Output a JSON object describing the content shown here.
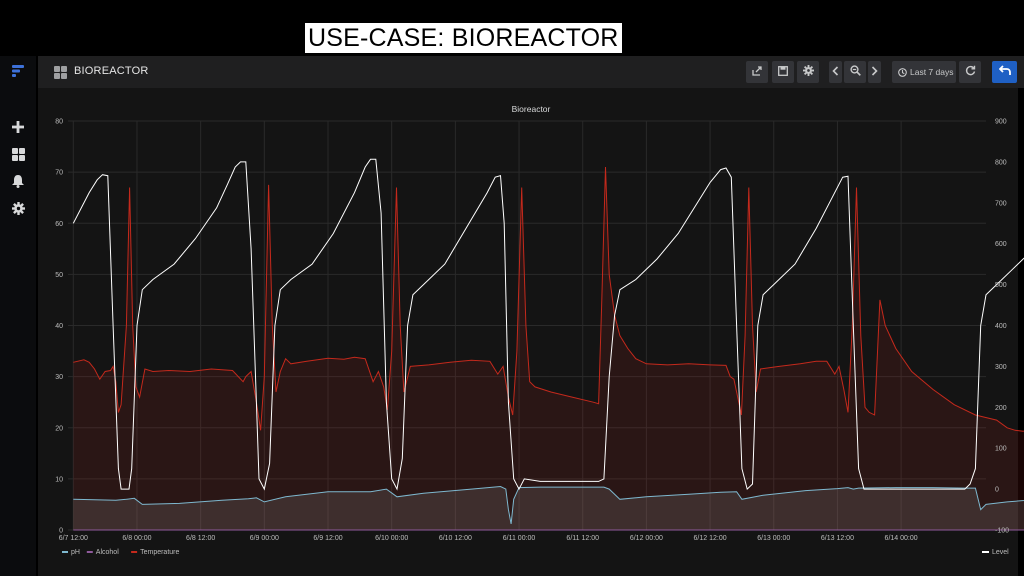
{
  "slide_title": "USE-CASE: BIOREACTOR",
  "dashboard": {
    "title": "BIOREACTOR",
    "time_range_label": "Last 7 days"
  },
  "icons": {
    "logo": "grafana-logo-icon",
    "sidebar": [
      "plus-icon",
      "dashboards-icon",
      "bell-icon",
      "gear-icon"
    ],
    "toolbar": [
      "share-icon",
      "save-icon",
      "settings-icon",
      "chevron-left-icon",
      "zoom-out-icon",
      "chevron-right-icon",
      "clock-icon",
      "refresh-icon",
      "back-icon"
    ]
  },
  "colors": {
    "temperature": "#c4291c",
    "ph": "#7eb8cf",
    "alcohol": "#8f5a9c",
    "level": "#ffffff",
    "accent_button": "#1f60c4"
  },
  "chart_data": {
    "type": "line",
    "title": "Bioreactor",
    "x_tick_labels": [
      "6/7 12:00",
      "6/8 00:00",
      "6/8 12:00",
      "6/9 00:00",
      "6/9 12:00",
      "6/10 00:00",
      "6/10 12:00",
      "6/11 00:00",
      "6/11 12:00",
      "6/12 00:00",
      "6/12 12:00",
      "6/13 00:00",
      "6/13 12:00",
      "6/14 00:00"
    ],
    "x_range_hours": [
      -1,
      172
    ],
    "y_left": {
      "ticks": [
        0,
        10,
        20,
        30,
        40,
        50,
        60,
        70,
        80
      ],
      "range": [
        0,
        80
      ]
    },
    "y_right": {
      "ticks": [
        -100,
        0,
        100,
        200,
        300,
        400,
        500,
        600,
        700,
        800,
        900
      ],
      "range": [
        -100,
        900
      ]
    },
    "grid": true,
    "legend_left": [
      "pH",
      "Alcohol",
      "Temperature"
    ],
    "legend_right": [
      "Level"
    ],
    "legend_placement": "bottom",
    "series": [
      {
        "name": "Level",
        "axis": "left",
        "points": [
          [
            0,
            60
          ],
          [
            1.5,
            63
          ],
          [
            3,
            66
          ],
          [
            4.5,
            68.5
          ],
          [
            5.5,
            69.5
          ],
          [
            6.5,
            69.3
          ],
          [
            7.5,
            40
          ],
          [
            8.5,
            12
          ],
          [
            9,
            8
          ],
          [
            10.5,
            8
          ],
          [
            11,
            12
          ],
          [
            12,
            40
          ],
          [
            13,
            47
          ],
          [
            15,
            49
          ],
          [
            19,
            52
          ],
          [
            23,
            57
          ],
          [
            27,
            63
          ],
          [
            29,
            67.5
          ],
          [
            30.5,
            71
          ],
          [
            31.5,
            72
          ],
          [
            32.5,
            72
          ],
          [
            33.5,
            55
          ],
          [
            34.5,
            25
          ],
          [
            35,
            10
          ],
          [
            36,
            8
          ],
          [
            37,
            13
          ],
          [
            38,
            40
          ],
          [
            39,
            47
          ],
          [
            41,
            49
          ],
          [
            45,
            52
          ],
          [
            49,
            58
          ],
          [
            53,
            66
          ],
          [
            55,
            71
          ],
          [
            56,
            72.5
          ],
          [
            57,
            72.5
          ],
          [
            58,
            62
          ],
          [
            59,
            25
          ],
          [
            60,
            10
          ],
          [
            61,
            8
          ],
          [
            62,
            14
          ],
          [
            63,
            40
          ],
          [
            64,
            46
          ],
          [
            66,
            48
          ],
          [
            70,
            52
          ],
          [
            74,
            59
          ],
          [
            78,
            66
          ],
          [
            79.5,
            69
          ],
          [
            80.5,
            69.3
          ],
          [
            81.2,
            60
          ],
          [
            82,
            25
          ],
          [
            83,
            10
          ],
          [
            84,
            8
          ],
          [
            85,
            10
          ],
          [
            88,
            9.5
          ],
          [
            93,
            9.5
          ],
          [
            96,
            9.5
          ],
          [
            99,
            9.5
          ],
          [
            100,
            10
          ],
          [
            101,
            30
          ],
          [
            102,
            42
          ],
          [
            103,
            47
          ],
          [
            106,
            49
          ],
          [
            110,
            53
          ],
          [
            114,
            58
          ],
          [
            117,
            63
          ],
          [
            120,
            68
          ],
          [
            122,
            70.5
          ],
          [
            123,
            70.8
          ],
          [
            124,
            69
          ],
          [
            125,
            40
          ],
          [
            126,
            12
          ],
          [
            127,
            8
          ],
          [
            128,
            9
          ],
          [
            129,
            40
          ],
          [
            130,
            46
          ],
          [
            132,
            48
          ],
          [
            136,
            52
          ],
          [
            140,
            59
          ],
          [
            143,
            65
          ],
          [
            145,
            69
          ],
          [
            146,
            69.2
          ],
          [
            147,
            40
          ],
          [
            148,
            12
          ],
          [
            149,
            8
          ],
          [
            151,
            8
          ],
          [
            155,
            8
          ],
          [
            160,
            8
          ],
          [
            165,
            8
          ],
          [
            168,
            8
          ],
          [
            169,
            9
          ],
          [
            170,
            12
          ],
          [
            171,
            40
          ],
          [
            172,
            46
          ],
          [
            174,
            48
          ],
          [
            177,
            51
          ],
          [
            180,
            54
          ],
          [
            182,
            57
          ],
          [
            183,
            59
          ]
        ]
      },
      {
        "name": "Temperature",
        "axis": "left",
        "points": [
          [
            0,
            32.8
          ],
          [
            2,
            33.3
          ],
          [
            3,
            32.8
          ],
          [
            4,
            31.5
          ],
          [
            5,
            29.5
          ],
          [
            6,
            31
          ],
          [
            7,
            31.2
          ],
          [
            7.5,
            32
          ],
          [
            8,
            29
          ],
          [
            8.5,
            23
          ],
          [
            9,
            24.5
          ],
          [
            10,
            40
          ],
          [
            10.6,
            67
          ],
          [
            11.2,
            40
          ],
          [
            11.8,
            28
          ],
          [
            12.5,
            26
          ],
          [
            13.5,
            31.5
          ],
          [
            15,
            31
          ],
          [
            18,
            31.2
          ],
          [
            22,
            31
          ],
          [
            26,
            31.5
          ],
          [
            30,
            31.2
          ],
          [
            32,
            29
          ],
          [
            32.5,
            30
          ],
          [
            33.5,
            31
          ],
          [
            34.5,
            25
          ],
          [
            35.3,
            19.5
          ],
          [
            36,
            30
          ],
          [
            36.8,
            67.5
          ],
          [
            37.5,
            40
          ],
          [
            38.2,
            27
          ],
          [
            39,
            31
          ],
          [
            40,
            33.5
          ],
          [
            41,
            32.5
          ],
          [
            44,
            33
          ],
          [
            48,
            33.6
          ],
          [
            51,
            33.4
          ],
          [
            53,
            33.8
          ],
          [
            55,
            33.5
          ],
          [
            56.5,
            29
          ],
          [
            57.5,
            31
          ],
          [
            58.5,
            28
          ],
          [
            59.2,
            23.5
          ],
          [
            60,
            35
          ],
          [
            60.9,
            67
          ],
          [
            61.6,
            40
          ],
          [
            62.3,
            27
          ],
          [
            63.5,
            32
          ],
          [
            67,
            32.3
          ],
          [
            71,
            32.8
          ],
          [
            75,
            33.2
          ],
          [
            78.5,
            33
          ],
          [
            80,
            30.5
          ],
          [
            81,
            32
          ],
          [
            82,
            26
          ],
          [
            82.8,
            22.5
          ],
          [
            83.6,
            35
          ],
          [
            84.5,
            67
          ],
          [
            85.3,
            40
          ],
          [
            86,
            29
          ],
          [
            87,
            28
          ],
          [
            90,
            27
          ],
          [
            94,
            26
          ],
          [
            98,
            25
          ],
          [
            99,
            24.7
          ],
          [
            99.6,
            45
          ],
          [
            100.3,
            71
          ],
          [
            101,
            50
          ],
          [
            102,
            42
          ],
          [
            103,
            38
          ],
          [
            104.5,
            35.5
          ],
          [
            106,
            33.5
          ],
          [
            108,
            32.5
          ],
          [
            112,
            32.3
          ],
          [
            116,
            32.5
          ],
          [
            120,
            32.3
          ],
          [
            123,
            32.2
          ],
          [
            123.8,
            30
          ],
          [
            124.5,
            29.5
          ],
          [
            125.2,
            26
          ],
          [
            125.9,
            22.5
          ],
          [
            126.6,
            38
          ],
          [
            127.3,
            67
          ],
          [
            128,
            40
          ],
          [
            128.7,
            27
          ],
          [
            129.5,
            31.5
          ],
          [
            133,
            32
          ],
          [
            137,
            32.5
          ],
          [
            140,
            33
          ],
          [
            142,
            33
          ],
          [
            143.5,
            30.5
          ],
          [
            144.3,
            32
          ],
          [
            145.2,
            27.5
          ],
          [
            146,
            23
          ],
          [
            146.8,
            40
          ],
          [
            147.6,
            67
          ],
          [
            148.4,
            38
          ],
          [
            149.2,
            24
          ],
          [
            150,
            23
          ],
          [
            151,
            22.5
          ],
          [
            152,
            45
          ],
          [
            153,
            40
          ],
          [
            155,
            35.5
          ],
          [
            158,
            31
          ],
          [
            162,
            27.5
          ],
          [
            166,
            24.5
          ],
          [
            170,
            22.5
          ],
          [
            174,
            21.5
          ],
          [
            176,
            20
          ],
          [
            177.5,
            19.5
          ],
          [
            179,
            19.3
          ],
          [
            181,
            20
          ],
          [
            183,
            20.3
          ],
          [
            184,
            21
          ],
          [
            184.8,
            30
          ],
          [
            185.5,
            70
          ],
          [
            186,
            75
          ],
          [
            186.6,
            55
          ],
          [
            187.5,
            36
          ],
          [
            189,
            30
          ],
          [
            191,
            26
          ],
          [
            193,
            24
          ],
          [
            194,
            23.5
          ],
          [
            195,
            24
          ],
          [
            195.8,
            26
          ],
          [
            196.5,
            35
          ],
          [
            197.3,
            32.5
          ],
          [
            199,
            32.5
          ],
          [
            203,
            32.5
          ],
          [
            205,
            33
          ]
        ]
      },
      {
        "name": "pH",
        "axis": "left",
        "points": [
          [
            0,
            6
          ],
          [
            4,
            5.9
          ],
          [
            8,
            5.8
          ],
          [
            10,
            6
          ],
          [
            11.5,
            6.2
          ],
          [
            13,
            5
          ],
          [
            20,
            5.2
          ],
          [
            28,
            5.8
          ],
          [
            33,
            6.1
          ],
          [
            34.5,
            6.3
          ],
          [
            36,
            5.5
          ],
          [
            40,
            6.5
          ],
          [
            48,
            7.5
          ],
          [
            56,
            7.5
          ],
          [
            59,
            8
          ],
          [
            61,
            6.5
          ],
          [
            66,
            7.2
          ],
          [
            75,
            8
          ],
          [
            80.5,
            8.5
          ],
          [
            81.5,
            8
          ],
          [
            82,
            4
          ],
          [
            82.5,
            1.2
          ],
          [
            83,
            6
          ],
          [
            84,
            8.3
          ],
          [
            88,
            8.4
          ],
          [
            96,
            8.4
          ],
          [
            100,
            8.4
          ],
          [
            101,
            8
          ],
          [
            103,
            6
          ],
          [
            108,
            6.5
          ],
          [
            116,
            7
          ],
          [
            122,
            7.4
          ],
          [
            125,
            7.5
          ],
          [
            126,
            6
          ],
          [
            130,
            6.8
          ],
          [
            138,
            7.7
          ],
          [
            144,
            8.1
          ],
          [
            146,
            8.3
          ],
          [
            147,
            8
          ],
          [
            148,
            8.2
          ],
          [
            155,
            8.3
          ],
          [
            162,
            8.3
          ],
          [
            168,
            8.2
          ],
          [
            170,
            8.2
          ],
          [
            171,
            4
          ],
          [
            172,
            5
          ],
          [
            176,
            5.5
          ],
          [
            182,
            6
          ]
        ]
      },
      {
        "name": "Alcohol",
        "axis": "left",
        "points": [
          [
            0,
            0
          ],
          [
            205,
            0
          ]
        ]
      }
    ]
  }
}
